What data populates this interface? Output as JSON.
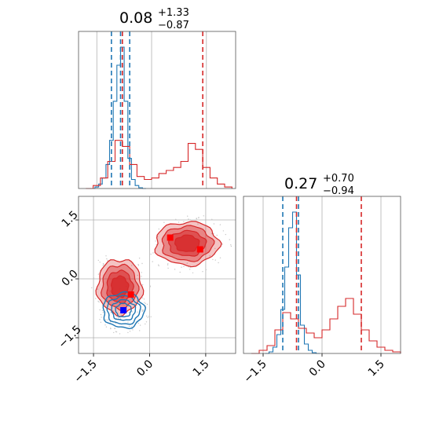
{
  "chart_data": [
    {
      "type": "histogram",
      "panel": "marginal-x",
      "title": {
        "value": "0.08",
        "upper": "+1.33",
        "lower": "−0.87"
      },
      "xlim": [
        -2.0,
        2.3
      ],
      "grid": true,
      "series": [
        {
          "color": "#1f77b4",
          "bin_centers": [
            -1.6,
            -1.5,
            -1.4,
            -1.3,
            -1.2,
            -1.1,
            -1.0,
            -0.9,
            -0.8,
            -0.7,
            -0.6,
            -0.5,
            -0.4,
            -0.3,
            -0.2
          ],
          "values": [
            0.0,
            0.01,
            0.03,
            0.07,
            0.16,
            0.32,
            0.58,
            0.82,
            0.94,
            0.58,
            0.2,
            0.06,
            0.02,
            0.005,
            0.0
          ],
          "quantile_lines": [
            -1.1,
            -0.85,
            -0.6
          ]
        },
        {
          "color": "#d62728",
          "bin_centers": [
            -1.7,
            -1.5,
            -1.3,
            -1.1,
            -0.9,
            -0.7,
            -0.5,
            -0.3,
            -0.1,
            0.1,
            0.3,
            0.5,
            0.7,
            0.9,
            1.1,
            1.3,
            1.5,
            1.7,
            1.9,
            2.1
          ],
          "values": [
            0.0,
            0.02,
            0.07,
            0.18,
            0.32,
            0.28,
            0.16,
            0.08,
            0.06,
            0.07,
            0.1,
            0.12,
            0.14,
            0.18,
            0.3,
            0.26,
            0.14,
            0.07,
            0.03,
            0.01
          ],
          "quantile_lines": [
            -0.8,
            1.4
          ]
        }
      ]
    },
    {
      "type": "histogram",
      "panel": "marginal-y",
      "title": {
        "value": "0.27",
        "upper": "+0.70",
        "lower": "−0.94"
      },
      "xlim": [
        -2.0,
        2.0
      ],
      "xticks": [
        "−1.5",
        "0.0",
        "1.5"
      ],
      "grid": true,
      "series": [
        {
          "color": "#1f77b4",
          "bin_centers": [
            -1.4,
            -1.3,
            -1.2,
            -1.1,
            -1.0,
            -0.9,
            -0.8,
            -0.7,
            -0.6,
            -0.5,
            -0.4,
            -0.3,
            -0.2,
            -0.1
          ],
          "values": [
            0.0,
            0.01,
            0.04,
            0.12,
            0.28,
            0.55,
            0.8,
            0.9,
            0.5,
            0.18,
            0.06,
            0.02,
            0.005,
            0.0
          ],
          "quantile_lines": [
            -1.0,
            -0.6
          ]
        },
        {
          "color": "#d62728",
          "bin_centers": [
            -1.7,
            -1.5,
            -1.3,
            -1.1,
            -0.9,
            -0.7,
            -0.5,
            -0.3,
            -0.1,
            0.1,
            0.3,
            0.5,
            0.7,
            0.9,
            1.1,
            1.3,
            1.5,
            1.7,
            1.9
          ],
          "values": [
            0.0,
            0.02,
            0.05,
            0.15,
            0.26,
            0.22,
            0.16,
            0.13,
            0.1,
            0.15,
            0.22,
            0.3,
            0.35,
            0.25,
            0.15,
            0.08,
            0.04,
            0.02,
            0.01
          ],
          "quantile_lines": [
            -0.65,
            1.0
          ]
        }
      ]
    },
    {
      "type": "contour",
      "panel": "joint",
      "xlim": [
        -1.9,
        2.3
      ],
      "ylim": [
        -1.9,
        2.1
      ],
      "xticks": [
        "−1.5",
        "0.0",
        "1.5"
      ],
      "yticks": [
        "−1.5",
        "0.0",
        "1.5"
      ],
      "grid": true,
      "series": [
        {
          "color": "#d62728",
          "modes": [
            {
              "center": [
                -0.8,
                -0.2
              ],
              "spread": [
                0.6,
                0.7
              ]
            },
            {
              "center": [
                1.0,
                0.9
              ],
              "spread": [
                0.85,
                0.55
              ]
            }
          ],
          "markers": [
            [
              -0.5,
              -0.4
            ],
            [
              0.55,
              1.05
            ],
            [
              1.35,
              0.75
            ]
          ]
        },
        {
          "color": "#1f77b4",
          "modes": [
            {
              "center": [
                -0.7,
                -0.8
              ],
              "spread": [
                0.55,
                0.45
              ]
            }
          ],
          "markers": [
            [
              -0.7,
              -0.8
            ]
          ]
        }
      ]
    }
  ]
}
